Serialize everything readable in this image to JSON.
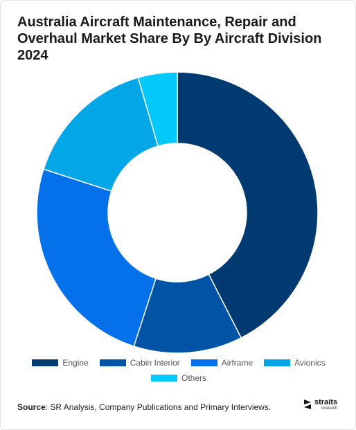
{
  "title": "Australia Aircraft Maintenance, Repair and Overhaul Market Share By By Aircraft Division 2024",
  "chart_data": {
    "type": "pie",
    "style": "donut",
    "categories": [
      "Engine",
      "Cabin Interior",
      "Airframe",
      "Avionics",
      "Others"
    ],
    "values": [
      42.5,
      12.5,
      25.0,
      15.5,
      4.5
    ],
    "colors": [
      "#003a70",
      "#0153a6",
      "#0470ea",
      "#03a6e6",
      "#03c8fa"
    ],
    "legend_position": "bottom",
    "start_angle_deg": 0,
    "direction": "clockwise"
  },
  "footer": {
    "source_label": "Source",
    "source_text": ": SR Analysis, Company Publications and Primary Interviews."
  },
  "logo": {
    "name": "straits",
    "sub": "research"
  }
}
